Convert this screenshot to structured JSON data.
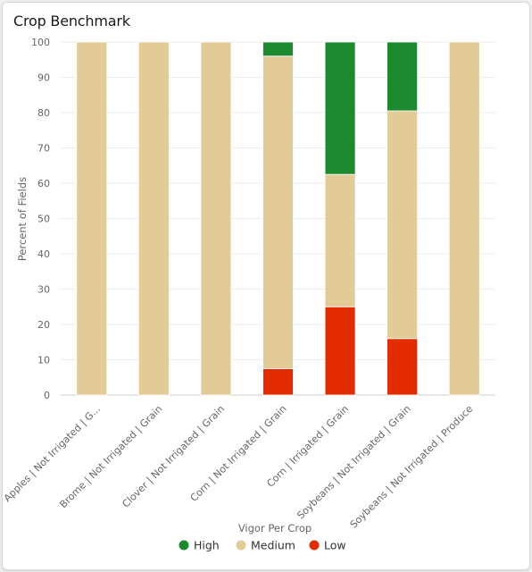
{
  "card": {
    "title": "Crop Benchmark"
  },
  "colors": {
    "High": "#1e8a2f",
    "Medium": "#e2cb97",
    "Low": "#e32b00"
  },
  "chart_data": {
    "type": "bar",
    "stacked": true,
    "title": "Crop Benchmark",
    "xlabel": "Vigor Per Crop",
    "ylabel": "Percent of Fields",
    "ylim": [
      0,
      100
    ],
    "yticks": [
      0,
      10,
      20,
      30,
      40,
      50,
      60,
      70,
      80,
      90,
      100
    ],
    "categories": [
      "Apples | Not Irrigated | G...",
      "Brome | Not Irrigated | Grain",
      "Clover | Not Irrigated | Grain",
      "Corn | Not Irrigated | Grain",
      "Corn | Irrigated | Grain",
      "Soybeans | Not Irrigated | Grain",
      "Soybeans | Not Irrigated | Produce"
    ],
    "series": [
      {
        "name": "Low",
        "values": [
          0,
          0,
          0,
          7.5,
          25,
          16,
          0
        ]
      },
      {
        "name": "Medium",
        "values": [
          100,
          100,
          100,
          88.5,
          37.5,
          64.5,
          100
        ]
      },
      {
        "name": "High",
        "values": [
          0,
          0,
          0,
          4,
          37.5,
          19.5,
          0
        ]
      }
    ],
    "legend": {
      "position": "bottom",
      "order": [
        "High",
        "Medium",
        "Low"
      ]
    },
    "grid": true
  }
}
